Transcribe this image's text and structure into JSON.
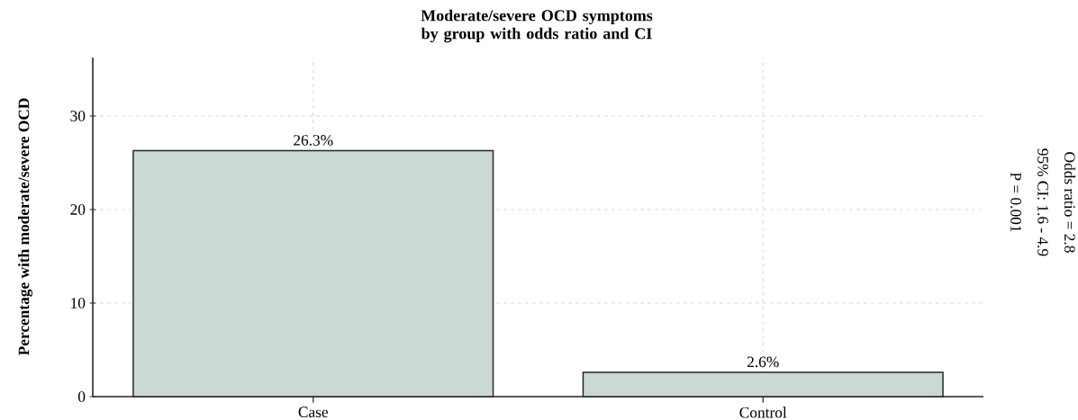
{
  "chart_data": {
    "type": "bar",
    "title": "Moderate/severe OCD symptoms by group with odds ratio and CI",
    "ylabel": "Percentage with moderate/severe OCD",
    "categories": [
      "Case",
      "Control"
    ],
    "values": [
      26.3,
      2.6
    ],
    "value_labels": [
      "26.3%",
      "2.6%"
    ],
    "color": "#cbd9d5",
    "ylim": [
      0,
      36.25
    ],
    "yticks": [
      0,
      10,
      20,
      30
    ],
    "grid": true,
    "annotations": [
      "Odds ratio = 2.8",
      "95% CI: 1.6 - 4.9",
      "P = 0.001"
    ]
  }
}
